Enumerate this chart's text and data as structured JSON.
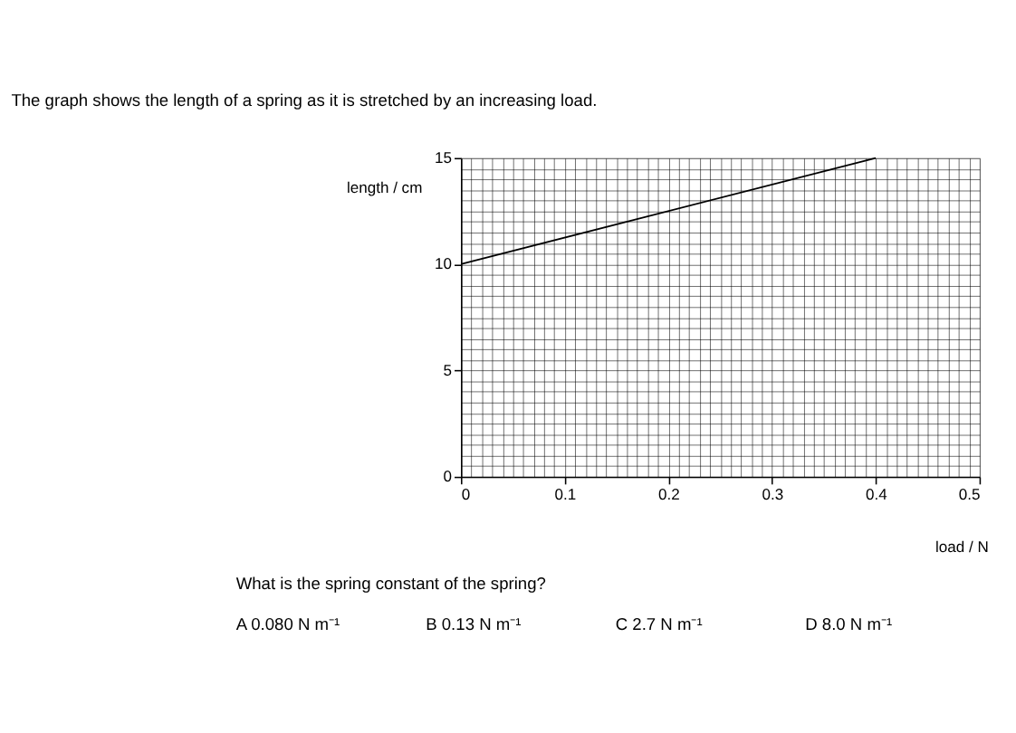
{
  "chart_data": {
    "type": "line",
    "title": "The graph shows the length of a spring as it is stretched by an increasing load.",
    "xlabel": "load / N",
    "ylabel": "length / cm",
    "x": [
      0,
      0.4
    ],
    "series": [
      {
        "color": "#000000",
        "values": [
          10,
          15
        ]
      }
    ],
    "xlim": [
      0,
      0.5
    ],
    "ylim": [
      0,
      15
    ],
    "xticks": [
      0,
      {
        "value": 0.01,
        "label": null
      },
      {
        "value": 0.02,
        "label": null
      },
      {
        "value": 0.03,
        "label": null
      },
      {
        "value": 0.04,
        "label": null
      },
      {
        "value": 0.05,
        "label": null
      },
      {
        "value": 0.06,
        "label": null
      },
      {
        "value": 0.07,
        "label": null
      },
      {
        "value": 0.08,
        "label": null
      },
      {
        "value": 0.09,
        "label": null
      },
      0.1,
      {
        "value": 0.11,
        "label": null
      },
      {
        "value": 0.12,
        "label": null
      },
      {
        "value": 0.13,
        "label": null
      },
      {
        "value": 0.14,
        "label": null
      },
      {
        "value": 0.15,
        "label": null
      },
      {
        "value": 0.16,
        "label": null
      },
      {
        "value": 0.17,
        "label": null
      },
      {
        "value": 0.18,
        "label": null
      },
      {
        "value": 0.19,
        "label": null
      },
      0.2,
      {
        "value": 0.21,
        "label": null
      },
      {
        "value": 0.22,
        "label": null
      },
      {
        "value": 0.23,
        "label": null
      },
      {
        "value": 0.24,
        "label": null
      },
      {
        "value": 0.25,
        "label": null
      },
      {
        "value": 0.26,
        "label": null
      },
      {
        "value": 0.27,
        "label": null
      },
      {
        "value": 0.28,
        "label": null
      },
      {
        "value": 0.29,
        "label": null
      },
      0.3,
      {
        "value": 0.31,
        "label": null
      },
      {
        "value": 0.32,
        "label": null
      },
      {
        "value": 0.33,
        "label": null
      },
      {
        "value": 0.34,
        "label": null
      },
      {
        "value": 0.35,
        "label": null
      },
      {
        "value": 0.36,
        "label": null
      },
      {
        "value": 0.37,
        "label": null
      },
      {
        "value": 0.38,
        "label": null
      },
      {
        "value": 0.39,
        "label": null
      },
      0.4,
      {
        "value": 0.41,
        "label": null
      },
      {
        "value": 0.42,
        "label": null
      },
      {
        "value": 0.43,
        "label": null
      },
      {
        "value": 0.44,
        "label": null
      },
      {
        "value": 0.45,
        "label": null
      },
      {
        "value": 0.46,
        "label": null
      },
      {
        "value": 0.47,
        "label": null
      },
      {
        "value": 0.48,
        "label": null
      },
      {
        "value": 0.49,
        "label": null
      },
      0.5
    ],
    "yticks": [
      0,
      {
        "value": 0.5,
        "label": null
      },
      {
        "value": 1,
        "label": null
      },
      {
        "value": 1.5,
        "label": null
      },
      {
        "value": 2,
        "label": null
      },
      {
        "value": 2.5,
        "label": null
      },
      {
        "value": 3,
        "label": null
      },
      {
        "value": 3.5,
        "label": null
      },
      {
        "value": 4,
        "label": null
      },
      {
        "value": 4.5,
        "label": null
      },
      5,
      {
        "value": 5.5,
        "label": null
      },
      {
        "value": 6,
        "label": null
      },
      {
        "value": 6.5,
        "label": null
      },
      {
        "value": 7,
        "label": null
      },
      {
        "value": 7.5,
        "label": null
      },
      {
        "value": 8,
        "label": null
      },
      {
        "value": 8.5,
        "label": null
      },
      {
        "value": 9,
        "label": null
      },
      {
        "value": 9.5,
        "label": null
      },
      10,
      {
        "value": 10.5,
        "label": null
      },
      {
        "value": 11,
        "label": null
      },
      {
        "value": 11.5,
        "label": null
      },
      {
        "value": 12,
        "label": null
      },
      {
        "value": 12.5,
        "label": null
      },
      {
        "value": 13,
        "label": null
      },
      {
        "value": 13.5,
        "label": null
      },
      {
        "value": 14,
        "label": null
      },
      {
        "value": 14.5,
        "label": null
      },
      15
    ],
    "grid": true,
    "marker": "none",
    "line_style": "solid",
    "annotations": [
      "What is the spring constant of the spring?",
      "A   0.080 N m⁻¹",
      "B   0.13 N m⁻¹",
      "C   2.7 N m⁻¹",
      "D   8.0 N m⁻¹"
    ]
  }
}
